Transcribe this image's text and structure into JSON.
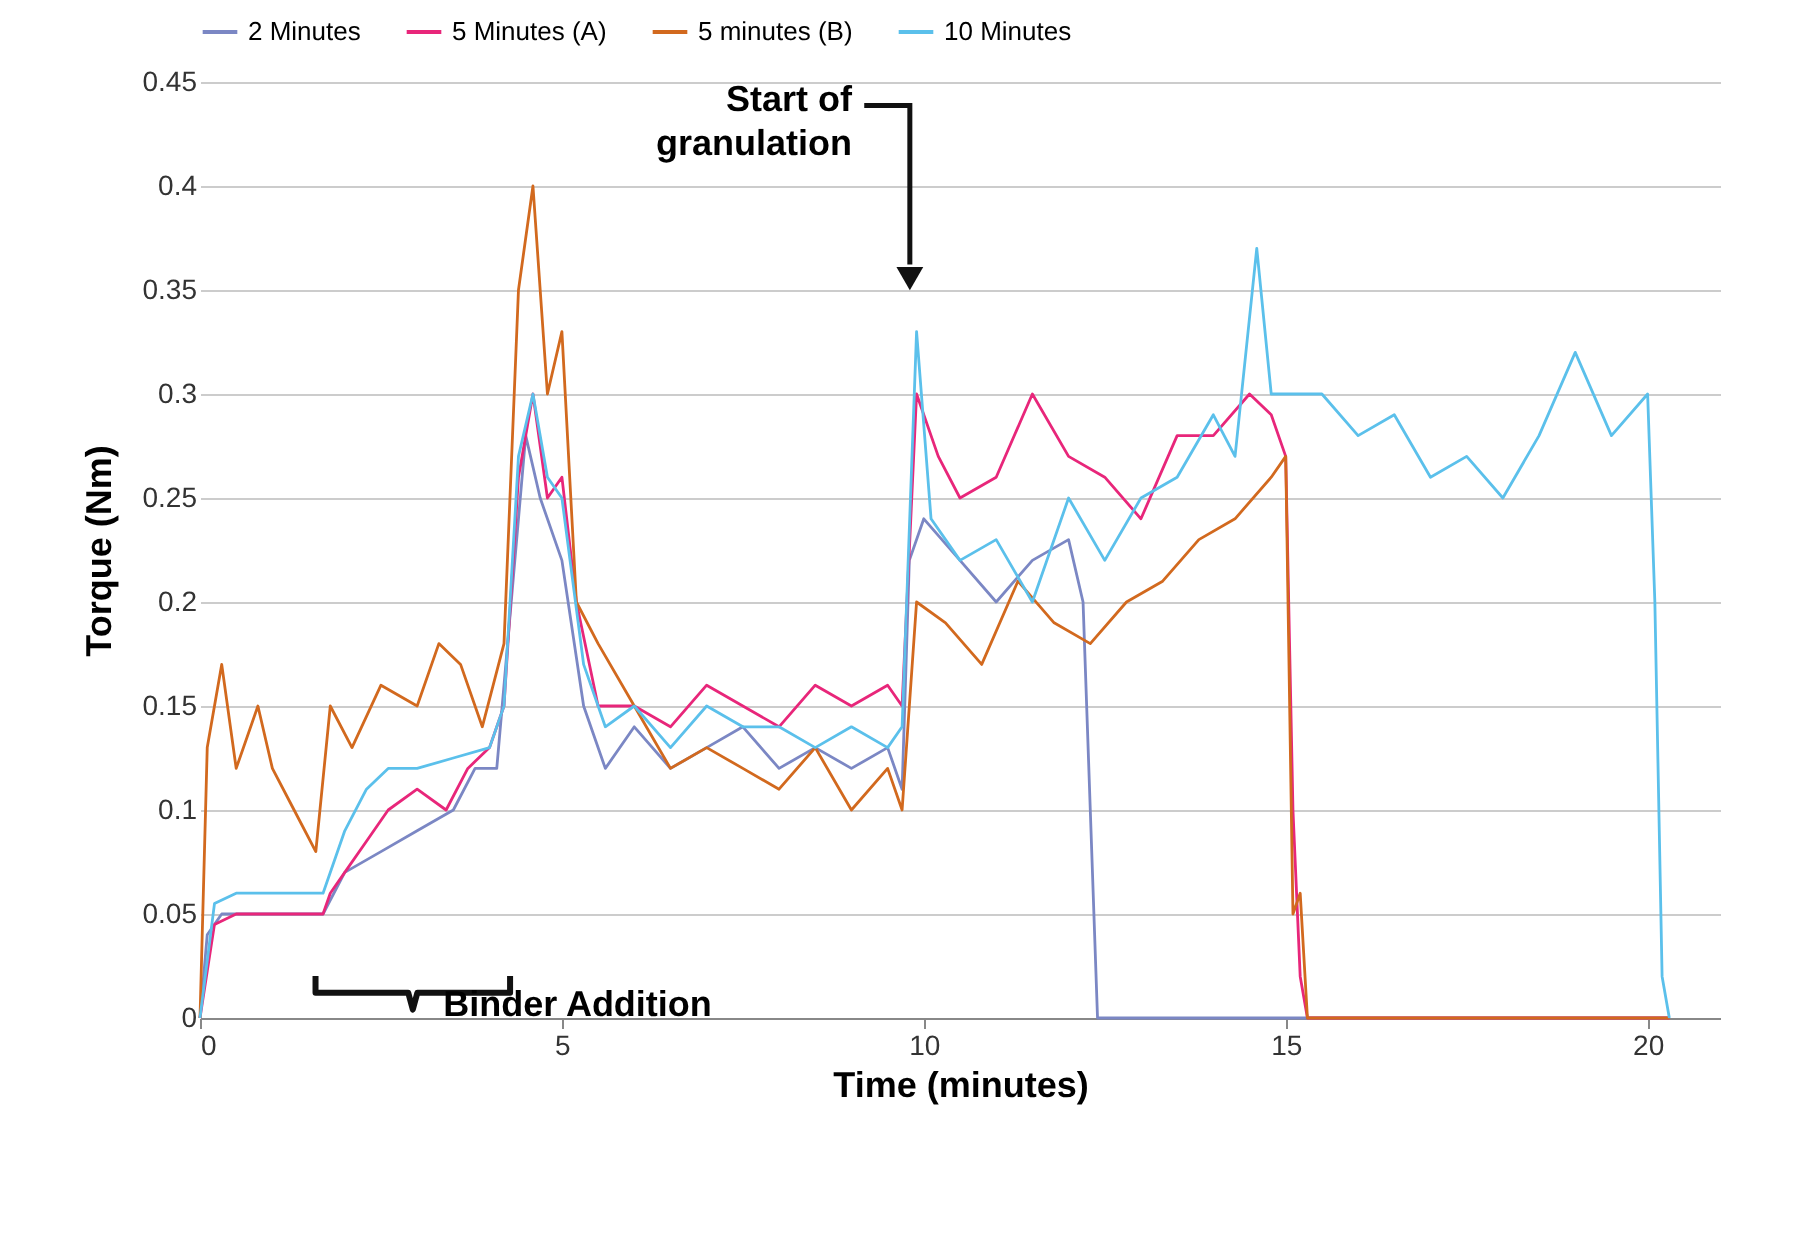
{
  "chart_data": {
    "type": "line",
    "xlabel": "Time (minutes)",
    "ylabel": "Torque (Nm)",
    "xlim": [
      0,
      21
    ],
    "xticks": [
      0,
      5,
      10,
      15,
      20
    ],
    "ylim": [
      0,
      0.45
    ],
    "yticks": [
      0,
      0.05,
      0.1,
      0.15,
      0.2,
      0.25,
      0.3,
      0.35,
      0.4,
      0.45
    ],
    "grid": "y",
    "legend": "top",
    "line_style": "solid",
    "annotations": [
      "Start of granulation",
      "Binder Addition"
    ],
    "series": [
      {
        "name": "2 Minutes",
        "color": "#7b87c4",
        "x": [
          0,
          0.1,
          0.3,
          1.5,
          1.7,
          2,
          2.5,
          3,
          3.5,
          3.8,
          4.1,
          4.3,
          4.5,
          4.7,
          5,
          5.3,
          5.6,
          6,
          6.5,
          7,
          7.5,
          8,
          8.5,
          9,
          9.5,
          9.7,
          9.8,
          10,
          10.5,
          11,
          11.5,
          12,
          12.2,
          12.3,
          12.4,
          15,
          20.3
        ],
        "values": [
          0,
          0.04,
          0.05,
          0.05,
          0.05,
          0.07,
          0.08,
          0.09,
          0.1,
          0.12,
          0.12,
          0.2,
          0.28,
          0.25,
          0.22,
          0.15,
          0.12,
          0.14,
          0.12,
          0.13,
          0.14,
          0.12,
          0.13,
          0.12,
          0.13,
          0.11,
          0.22,
          0.24,
          0.22,
          0.2,
          0.22,
          0.23,
          0.2,
          0.1,
          0,
          0,
          0
        ]
      },
      {
        "name": "5 Minutes (A)",
        "color": "#e8267a",
        "x": [
          0,
          0.2,
          0.5,
          1.7,
          1.8,
          2,
          2.3,
          2.6,
          3,
          3.4,
          3.7,
          4,
          4.2,
          4.4,
          4.6,
          4.8,
          5,
          5.2,
          5.5,
          6,
          6.5,
          7,
          7.5,
          8,
          8.5,
          9,
          9.5,
          9.7,
          9.9,
          10.2,
          10.5,
          11,
          11.5,
          12,
          12.5,
          13,
          13.5,
          14,
          14.5,
          14.8,
          15,
          15.1,
          15.2,
          15.3,
          20.3
        ],
        "values": [
          0,
          0.045,
          0.05,
          0.05,
          0.06,
          0.07,
          0.085,
          0.1,
          0.11,
          0.1,
          0.12,
          0.13,
          0.15,
          0.26,
          0.3,
          0.25,
          0.26,
          0.2,
          0.15,
          0.15,
          0.14,
          0.16,
          0.15,
          0.14,
          0.16,
          0.15,
          0.16,
          0.15,
          0.3,
          0.27,
          0.25,
          0.26,
          0.3,
          0.27,
          0.26,
          0.24,
          0.28,
          0.28,
          0.3,
          0.29,
          0.27,
          0.1,
          0.02,
          0,
          0
        ]
      },
      {
        "name": "5 minutes (B)",
        "color": "#d2691e",
        "x": [
          0,
          0.1,
          0.3,
          0.5,
          0.8,
          1,
          1.3,
          1.6,
          1.8,
          2.1,
          2.5,
          3,
          3.3,
          3.6,
          3.9,
          4.2,
          4.4,
          4.6,
          4.8,
          5,
          5.2,
          5.5,
          6,
          6.5,
          7,
          7.5,
          8,
          8.5,
          9,
          9.5,
          9.7,
          9.9,
          10.3,
          10.8,
          11.3,
          11.8,
          12.3,
          12.8,
          13.3,
          13.8,
          14.3,
          14.8,
          15,
          15.1,
          15.2,
          15.3,
          20.3
        ],
        "values": [
          0,
          0.13,
          0.17,
          0.12,
          0.15,
          0.12,
          0.1,
          0.08,
          0.15,
          0.13,
          0.16,
          0.15,
          0.18,
          0.17,
          0.14,
          0.18,
          0.35,
          0.4,
          0.3,
          0.33,
          0.2,
          0.18,
          0.15,
          0.12,
          0.13,
          0.12,
          0.11,
          0.13,
          0.1,
          0.12,
          0.1,
          0.2,
          0.19,
          0.17,
          0.21,
          0.19,
          0.18,
          0.2,
          0.21,
          0.23,
          0.24,
          0.26,
          0.27,
          0.05,
          0.06,
          0,
          0
        ]
      },
      {
        "name": "10 Minutes",
        "color": "#5bc0eb",
        "x": [
          0,
          0.2,
          0.5,
          1.7,
          2,
          2.3,
          2.6,
          3,
          3.5,
          4,
          4.2,
          4.4,
          4.6,
          4.8,
          5,
          5.3,
          5.6,
          6,
          6.5,
          7,
          7.5,
          8,
          8.5,
          9,
          9.5,
          9.7,
          9.9,
          10.1,
          10.5,
          11,
          11.5,
          12,
          12.5,
          13,
          13.5,
          14,
          14.3,
          14.6,
          14.8,
          15,
          15.5,
          16,
          16.5,
          17,
          17.5,
          18,
          18.5,
          19,
          19.5,
          20,
          20.1,
          20.2,
          20.3
        ],
        "values": [
          0,
          0.055,
          0.06,
          0.06,
          0.09,
          0.11,
          0.12,
          0.12,
          0.125,
          0.13,
          0.15,
          0.27,
          0.3,
          0.26,
          0.25,
          0.17,
          0.14,
          0.15,
          0.13,
          0.15,
          0.14,
          0.14,
          0.13,
          0.14,
          0.13,
          0.14,
          0.33,
          0.24,
          0.22,
          0.23,
          0.2,
          0.25,
          0.22,
          0.25,
          0.26,
          0.29,
          0.27,
          0.37,
          0.3,
          0.3,
          0.3,
          0.28,
          0.29,
          0.26,
          0.27,
          0.25,
          0.28,
          0.32,
          0.28,
          0.3,
          0.2,
          0.02,
          0
        ]
      }
    ]
  }
}
